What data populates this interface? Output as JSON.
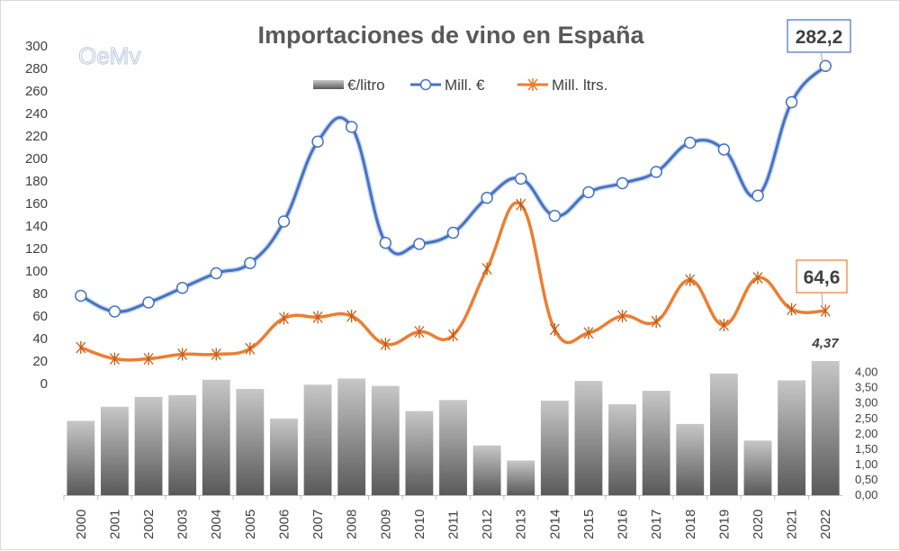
{
  "logo_text": "OeMv",
  "chart_data": {
    "type": "bar+line",
    "title": "Importaciones de vino en España",
    "categories": [
      "2000",
      "2001",
      "2002",
      "2003",
      "2004",
      "2005",
      "2006",
      "2007",
      "2008",
      "2009",
      "2010",
      "2011",
      "2012",
      "2013",
      "2014",
      "2015",
      "2016",
      "2017",
      "2018",
      "2019",
      "2020",
      "2021",
      "2022"
    ],
    "left_axis": {
      "ticks": [
        "0",
        "20",
        "40",
        "60",
        "80",
        "100",
        "120",
        "140",
        "160",
        "180",
        "200",
        "220",
        "240",
        "260",
        "280",
        "300"
      ],
      "ylim": [
        0,
        300
      ]
    },
    "right_axis": {
      "ticks": [
        "0,00",
        "0,50",
        "1,00",
        "1,50",
        "2,00",
        "2,50",
        "3,00",
        "3,50",
        "4,00"
      ],
      "ylim": [
        0,
        4.37
      ]
    },
    "series": [
      {
        "name": "€/litro",
        "type": "bar",
        "axis": "right",
        "color": "#7f7f7f",
        "values": [
          2.42,
          2.88,
          3.2,
          3.26,
          3.76,
          3.46,
          2.5,
          3.6,
          3.8,
          3.56,
          2.74,
          3.1,
          1.62,
          1.13,
          3.08,
          3.72,
          2.96,
          3.4,
          2.32,
          3.96,
          1.78,
          3.74,
          4.37
        ]
      },
      {
        "name": "Mill. €",
        "type": "line",
        "axis": "left",
        "color": "#4472c4",
        "values": [
          78,
          64,
          72,
          85,
          98,
          107,
          144,
          215,
          228,
          125,
          124,
          134,
          165,
          182,
          149,
          170,
          178,
          188,
          214,
          208,
          167,
          250,
          282.2
        ]
      },
      {
        "name": "Mill. ltrs.",
        "type": "line",
        "axis": "left",
        "color": "#ed7d31",
        "values": [
          32,
          22,
          22,
          26,
          26,
          31,
          58,
          59,
          60,
          35,
          46,
          43,
          102,
          159,
          48,
          45,
          60,
          55,
          92,
          52,
          94,
          66,
          64.6
        ]
      }
    ],
    "callouts": {
      "mill_eur_last": "282,2",
      "mill_ltrs_last": "64,6",
      "eur_litro_last": "4,37"
    },
    "legend_position": "top-center",
    "grid": false
  }
}
